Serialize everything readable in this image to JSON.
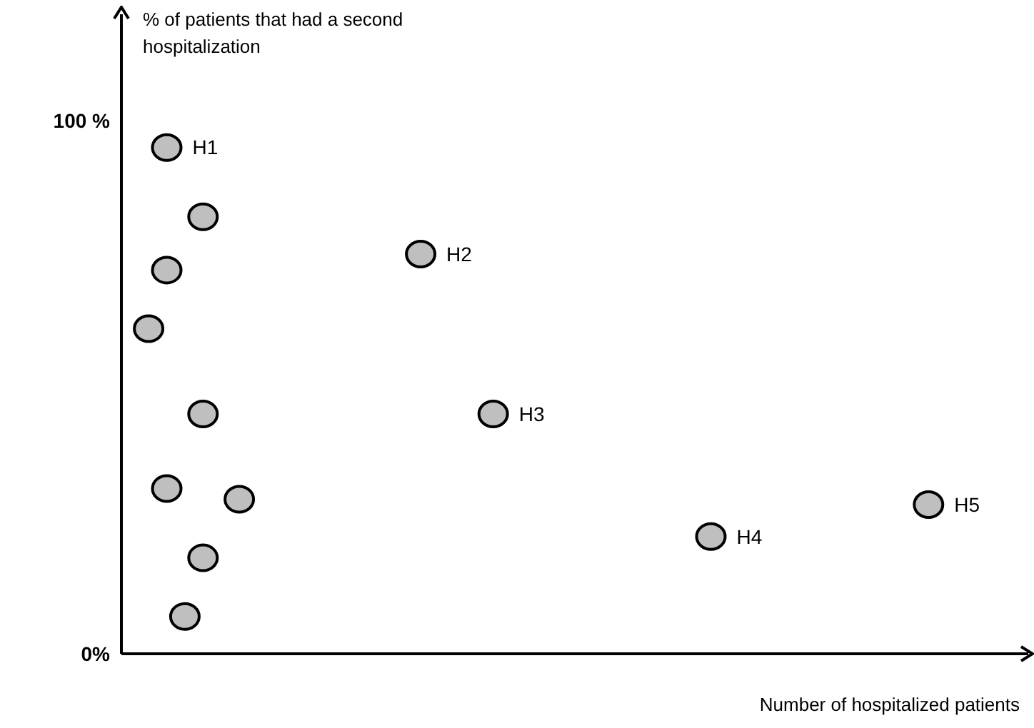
{
  "chart_data": {
    "type": "scatter",
    "xlabel": "Number of hospitalized patients",
    "ylabel": "% of patients that had a second hospitalization",
    "categories": [
      null,
      null,
      null,
      null,
      null,
      null,
      null,
      null,
      null,
      null,
      null,
      null,
      null,
      null,
      null,
      null,
      null,
      null,
      null,
      null,
      null,
      null,
      null,
      null,
      null,
      null,
      null,
      null,
      null,
      null,
      null,
      null,
      null,
      null,
      null,
      null,
      null,
      null,
      null,
      null,
      null,
      null,
      null,
      null,
      null,
      null,
      null,
      null,
      null,
      null
    ],
    "series": [
      {
        "name": "H1",
        "color": "#bfbfbf",
        "values": [
          null,
          null,
          95,
          null,
          null,
          null,
          null,
          null,
          null,
          null,
          null,
          null,
          null,
          null,
          null,
          null,
          null,
          null,
          null,
          null,
          null,
          null,
          null,
          null,
          null,
          null,
          null,
          null,
          null,
          null,
          null,
          null,
          null,
          null,
          null,
          null,
          null,
          null,
          null,
          null,
          null,
          null,
          null,
          null,
          null,
          null,
          null,
          null,
          null,
          null
        ]
      },
      {
        "name": "H2",
        "color": "#bfbfbf",
        "values": [
          null,
          null,
          null,
          null,
          null,
          null,
          null,
          null,
          null,
          null,
          null,
          null,
          null,
          null,
          null,
          null,
          75,
          null,
          null,
          null,
          null,
          null,
          null,
          null,
          null,
          null,
          null,
          null,
          null,
          null,
          null,
          null,
          null,
          null,
          null,
          null,
          null,
          null,
          null,
          null,
          null,
          null,
          null,
          null,
          null,
          null,
          null,
          null,
          null,
          null
        ]
      },
      {
        "name": "H3",
        "color": "#bfbfbf",
        "values": [
          null,
          null,
          null,
          null,
          null,
          null,
          null,
          null,
          null,
          null,
          null,
          null,
          null,
          null,
          null,
          null,
          null,
          null,
          null,
          null,
          45,
          null,
          null,
          null,
          null,
          null,
          null,
          null,
          null,
          null,
          null,
          null,
          null,
          null,
          null,
          null,
          null,
          null,
          null,
          null,
          null,
          null,
          null,
          null,
          null,
          null,
          null,
          null,
          null,
          null
        ]
      },
      {
        "name": "H4",
        "color": "#bfbfbf",
        "values": [
          null,
          null,
          null,
          null,
          null,
          null,
          null,
          null,
          null,
          null,
          null,
          null,
          null,
          null,
          null,
          null,
          null,
          null,
          null,
          null,
          null,
          null,
          null,
          null,
          null,
          null,
          null,
          null,
          null,
          null,
          null,
          null,
          22,
          null,
          null,
          null,
          null,
          null,
          null,
          null,
          null,
          null,
          null,
          null,
          null,
          null,
          null,
          null,
          null,
          null
        ]
      },
      {
        "name": "H5",
        "color": "#bfbfbf",
        "values": [
          null,
          null,
          null,
          null,
          null,
          null,
          null,
          null,
          null,
          null,
          null,
          null,
          null,
          null,
          null,
          null,
          null,
          null,
          null,
          null,
          null,
          null,
          null,
          null,
          null,
          null,
          null,
          null,
          null,
          null,
          null,
          null,
          null,
          null,
          null,
          null,
          null,
          null,
          null,
          null,
          null,
          null,
          null,
          null,
          28,
          null,
          null,
          null,
          null,
          null
        ]
      },
      {
        "color": "#bfbfbf",
        "values": [
          null,
          61,
          72,
          7,
          82,
          null,
          29,
          null,
          null,
          null,
          null,
          null,
          null,
          null,
          null,
          null,
          null,
          null,
          null,
          null,
          null,
          null,
          null,
          null,
          null,
          null,
          null,
          null,
          null,
          null,
          null,
          null,
          null,
          null,
          null,
          null,
          null,
          null,
          null,
          null,
          null,
          null,
          null,
          null,
          null,
          null,
          null,
          null,
          null,
          null
        ]
      },
      {
        "color": "#bfbfbf",
        "values": [
          null,
          null,
          31,
          null,
          45,
          null,
          null,
          null,
          null,
          null,
          null,
          null,
          null,
          null,
          null,
          null,
          null,
          null,
          null,
          null,
          null,
          null,
          null,
          null,
          null,
          null,
          null,
          null,
          null,
          null,
          null,
          null,
          null,
          null,
          null,
          null,
          null,
          null,
          null,
          null,
          null,
          null,
          null,
          null,
          null,
          null,
          null,
          null,
          null,
          null
        ]
      },
      {
        "color": "#bfbfbf",
        "values": [
          null,
          null,
          null,
          null,
          18,
          null,
          null,
          null,
          null,
          null,
          null,
          null,
          null,
          null,
          null,
          null,
          null,
          null,
          null,
          null,
          null,
          null,
          null,
          null,
          null,
          null,
          null,
          null,
          null,
          null,
          null,
          null,
          null,
          null,
          null,
          null,
          null,
          null,
          null,
          null,
          null,
          null,
          null,
          null,
          null,
          null,
          null,
          null,
          null,
          null
        ]
      }
    ],
    "ylim": [
      0,
      120
    ],
    "yticks": [
      {
        "value": 100,
        "label": "100 %"
      },
      {
        "value": 0,
        "label": "0%"
      }
    ],
    "tick_labels": "y",
    "marker": "circle",
    "grid": false,
    "legend": false
  }
}
